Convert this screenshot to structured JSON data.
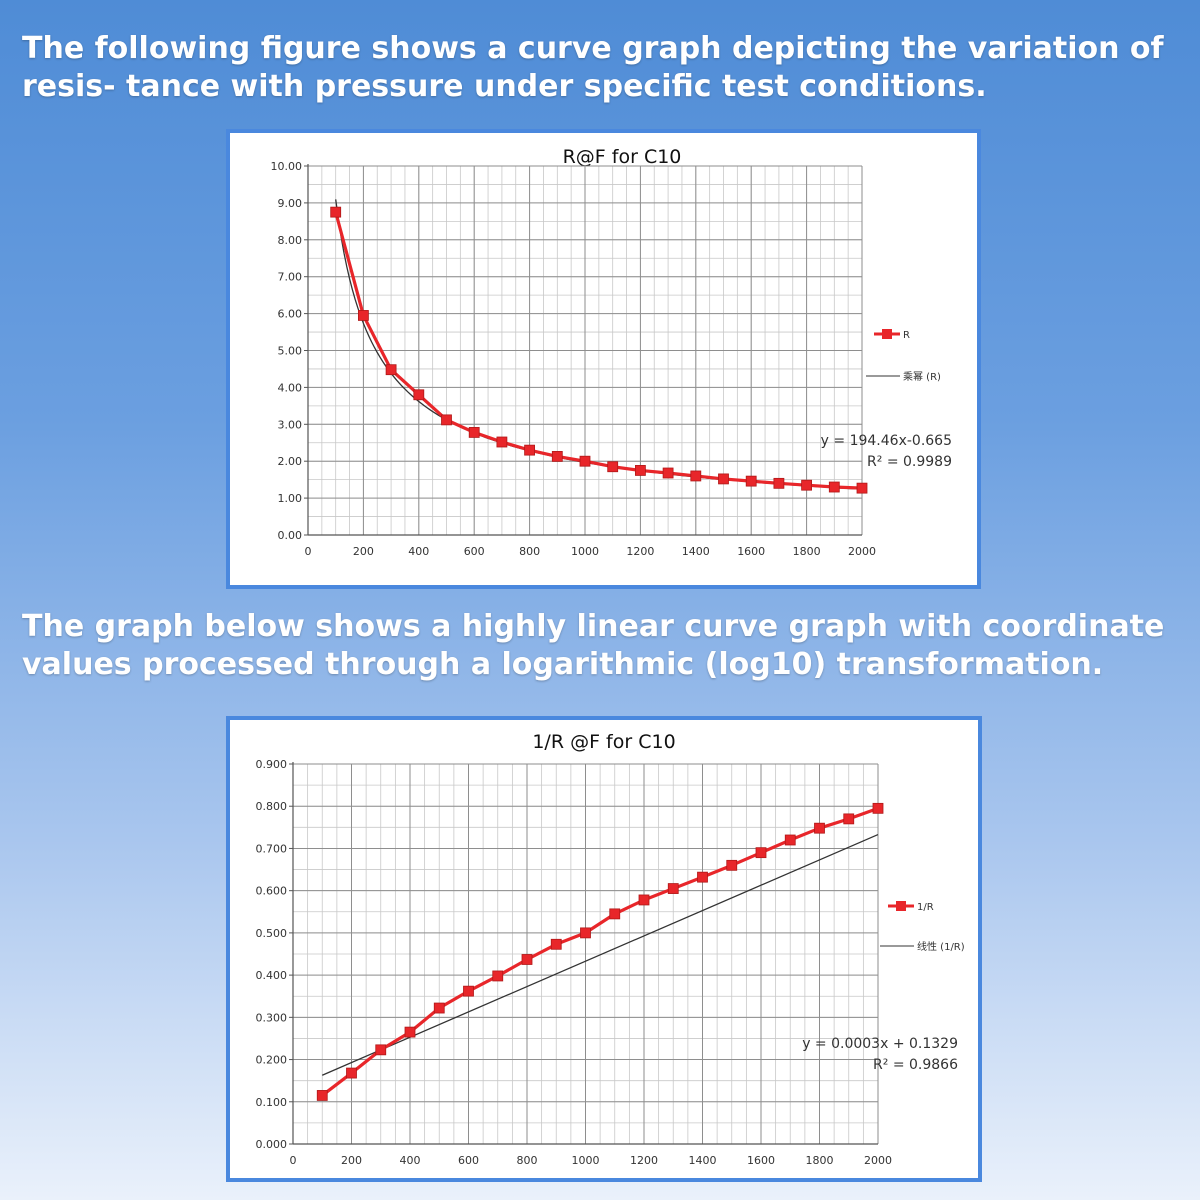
{
  "headings": {
    "top": "The following figure shows a curve graph depicting the variation of resis- tance with pressure under specific test conditions.",
    "bottom": "The graph below shows a highly linear curve graph with coordinate values processed through a logarithmic (log10) transformation."
  },
  "colors": {
    "series": "#e8262a",
    "marker": "#e8262a",
    "trend": "#333333",
    "grid": "#c8c8c8",
    "border": "#4a88de"
  },
  "chart_data": [
    {
      "type": "line",
      "title": "R@F for C10",
      "xlabel": "",
      "ylabel": "",
      "xlim": [
        0,
        2000
      ],
      "ylim": [
        0,
        10
      ],
      "x_ticks": [
        "0",
        "200",
        "400",
        "600",
        "800",
        "1000",
        "1200",
        "1400",
        "1600",
        "1800",
        "2000"
      ],
      "y_ticks": [
        "0.00",
        "1.00",
        "2.00",
        "3.00",
        "4.00",
        "5.00",
        "6.00",
        "7.00",
        "8.00",
        "9.00",
        "10.00"
      ],
      "grid": true,
      "legend_position": "right",
      "series": [
        {
          "name": "R",
          "x": [
            100,
            200,
            300,
            400,
            500,
            600,
            700,
            800,
            900,
            1000,
            1100,
            1200,
            1300,
            1400,
            1500,
            1600,
            1700,
            1800,
            1900,
            2000
          ],
          "values": [
            8.75,
            5.95,
            4.48,
            3.8,
            3.12,
            2.78,
            2.52,
            2.3,
            2.13,
            2.0,
            1.85,
            1.75,
            1.68,
            1.6,
            1.52,
            1.46,
            1.4,
            1.35,
            1.3,
            1.27
          ]
        },
        {
          "name": "乘幂 (R)",
          "trendline": "power",
          "equation": "y = 194.46x-0.665",
          "coefficient": 194.46,
          "exponent": -0.665,
          "r2": "R² = 0.9989"
        }
      ]
    },
    {
      "type": "line",
      "title": "1/R @F for C10",
      "xlabel": "",
      "ylabel": "",
      "xlim": [
        0,
        2000
      ],
      "ylim": [
        0,
        0.9
      ],
      "x_ticks": [
        "0",
        "200",
        "400",
        "600",
        "800",
        "1000",
        "1200",
        "1400",
        "1600",
        "1800",
        "2000"
      ],
      "y_ticks": [
        "0.000",
        "0.100",
        "0.200",
        "0.300",
        "0.400",
        "0.500",
        "0.600",
        "0.700",
        "0.800",
        "0.900"
      ],
      "grid": true,
      "legend_position": "right",
      "series": [
        {
          "name": "1/R",
          "x": [
            100,
            200,
            300,
            400,
            500,
            600,
            700,
            800,
            900,
            1000,
            1100,
            1200,
            1300,
            1400,
            1500,
            1600,
            1700,
            1800,
            1900,
            2000
          ],
          "values": [
            0.115,
            0.168,
            0.223,
            0.265,
            0.322,
            0.362,
            0.398,
            0.437,
            0.473,
            0.5,
            0.545,
            0.578,
            0.605,
            0.632,
            0.66,
            0.69,
            0.72,
            0.748,
            0.77,
            0.795
          ]
        },
        {
          "name": "线性 (1/R)",
          "trendline": "linear",
          "equation": "y = 0.0003x + 0.1329",
          "slope": 0.0003,
          "intercept": 0.1329,
          "r2": "R² = 0.9866"
        }
      ]
    }
  ]
}
